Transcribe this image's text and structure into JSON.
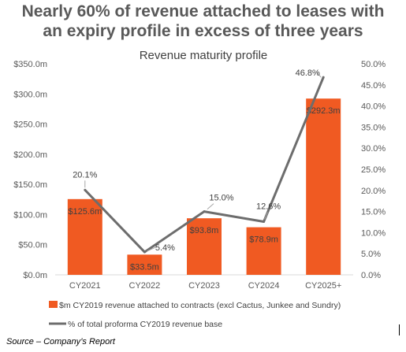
{
  "headline": {
    "line1": "Nearly 60% of revenue attached to leases with",
    "line2": "an expiry profile in excess of three years"
  },
  "source": "Source – Company’s Report",
  "colors": {
    "bar": "#F05A22",
    "line": "#6D6D6D",
    "text": "#595959",
    "gridline": "#D9D9D9"
  },
  "chart_data": {
    "type": "bar",
    "title": "Revenue maturity profile",
    "categories": [
      "CY2021",
      "CY2022",
      "CY2023",
      "CY2024",
      "CY2025+"
    ],
    "series": [
      {
        "name": "$m CY2019 revenue attached to contracts (excl Cactus, Junkee and Sundry)",
        "type": "bar",
        "axis": "left",
        "values": [
          125.6,
          33.5,
          93.8,
          78.9,
          292.3
        ],
        "labels": [
          "$125.6m",
          "$33.5m",
          "$93.8m",
          "$78.9m",
          "$292.3m"
        ]
      },
      {
        "name": "% of total proforma CY2019 revenue base",
        "type": "line",
        "axis": "right",
        "values": [
          20.1,
          5.4,
          15.0,
          12.6,
          46.8
        ],
        "labels": [
          "20.1%",
          "5.4%",
          "15.0%",
          "12.6%",
          "46.8%"
        ]
      }
    ],
    "y_left": {
      "lim": [
        0,
        350
      ],
      "ticks": [
        0,
        50,
        100,
        150,
        200,
        250,
        300,
        350
      ],
      "tick_labels": [
        "$0.0m",
        "$50.0m",
        "$100.0m",
        "$150.0m",
        "$200.0m",
        "$250.0m",
        "$300.0m",
        "$350.0m"
      ]
    },
    "y_right": {
      "lim": [
        0,
        50
      ],
      "ticks": [
        0,
        5,
        10,
        15,
        20,
        25,
        30,
        35,
        40,
        45,
        50
      ],
      "tick_labels": [
        "0.0%",
        "5.0%",
        "10.0%",
        "15.0%",
        "20.0%",
        "25.0%",
        "30.0%",
        "35.0%",
        "40.0%",
        "45.0%",
        "50.0%"
      ]
    },
    "legend": "bottom",
    "grid": false
  }
}
